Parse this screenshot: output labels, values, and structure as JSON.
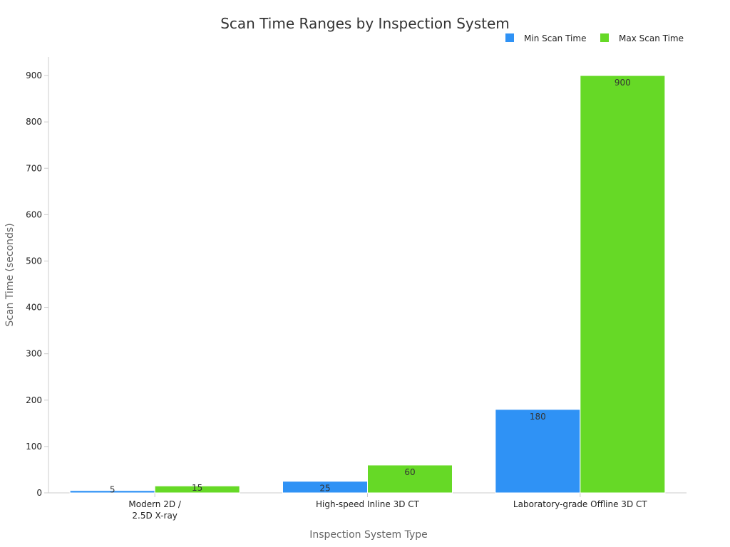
{
  "chart_data": {
    "type": "bar",
    "title": "Scan Time Ranges by Inspection System",
    "xlabel": "Inspection System Type",
    "ylabel": "Scan Time (seconds)",
    "categories": [
      [
        "Modern 2D /",
        "2.5D X-ray"
      ],
      [
        "High-speed Inline 3D CT"
      ],
      [
        "Laboratory-grade Offline 3D CT"
      ]
    ],
    "series": [
      {
        "name": "Min Scan Time",
        "color": "#2f92f5",
        "values": [
          5,
          25,
          180
        ],
        "labels": [
          "5",
          "25",
          "180"
        ]
      },
      {
        "name": "Max Scan Time",
        "color": "#66d926",
        "values": [
          15,
          60,
          900
        ],
        "labels": [
          "15",
          "60",
          "900"
        ]
      }
    ],
    "ylim": [
      0,
      940
    ],
    "yticks": [
      0,
      100,
      200,
      300,
      400,
      500,
      600,
      700,
      800,
      900
    ],
    "grid": false,
    "legend": "top-right"
  }
}
